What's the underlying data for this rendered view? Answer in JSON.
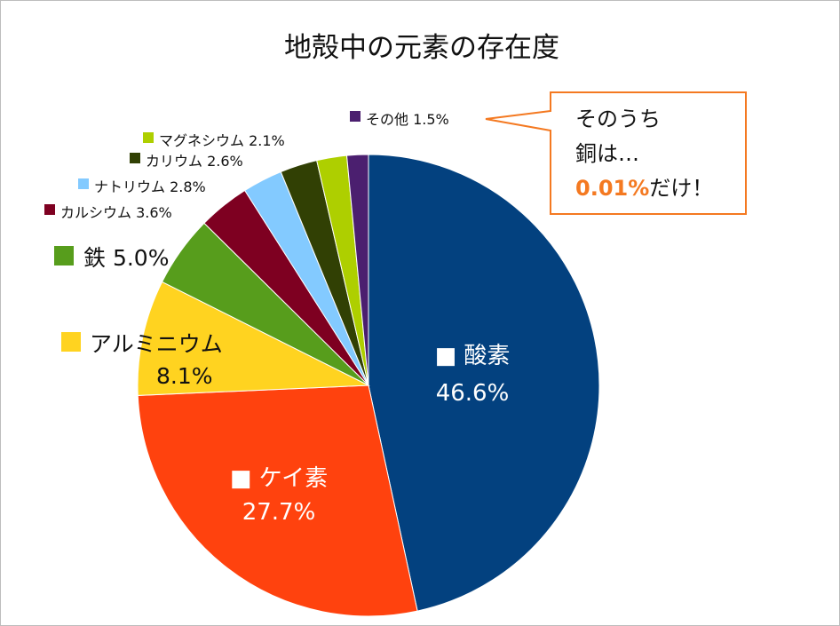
{
  "chart_data": {
    "type": "pie",
    "title": "地殻中の元素の存在度",
    "slices": [
      {
        "name": "酸素",
        "value": 46.6,
        "value_label": "46.6%",
        "color": "#03417f"
      },
      {
        "name": "ケイ素",
        "value": 27.7,
        "value_label": "27.7%",
        "color": "#ff420e"
      },
      {
        "name": "アルミニウム",
        "value": 8.1,
        "value_label": "8.1%",
        "color": "#ffd320"
      },
      {
        "name": "鉄",
        "value": 5.0,
        "value_label": "5.0%",
        "color": "#579d1c"
      },
      {
        "name": "カルシウム",
        "value": 3.6,
        "value_label": "3.6%",
        "color": "#7e0021"
      },
      {
        "name": "ナトリウム",
        "value": 2.8,
        "value_label": "2.8%",
        "color": "#83caff"
      },
      {
        "name": "カリウム",
        "value": 2.6,
        "value_label": "2.6%",
        "color": "#314004"
      },
      {
        "name": "マグネシウム",
        "value": 2.1,
        "value_label": "2.1%",
        "color": "#aecf00"
      },
      {
        "name": "その他",
        "value": 1.5,
        "value_label": "1.5%",
        "color": "#4b1f6f"
      }
    ],
    "callout": {
      "line1": "そのうち",
      "line2": "銅は…",
      "highlight": "0.01%",
      "suffix": "だけ！",
      "border_color": "#f47921",
      "highlight_color": "#f47921"
    }
  }
}
